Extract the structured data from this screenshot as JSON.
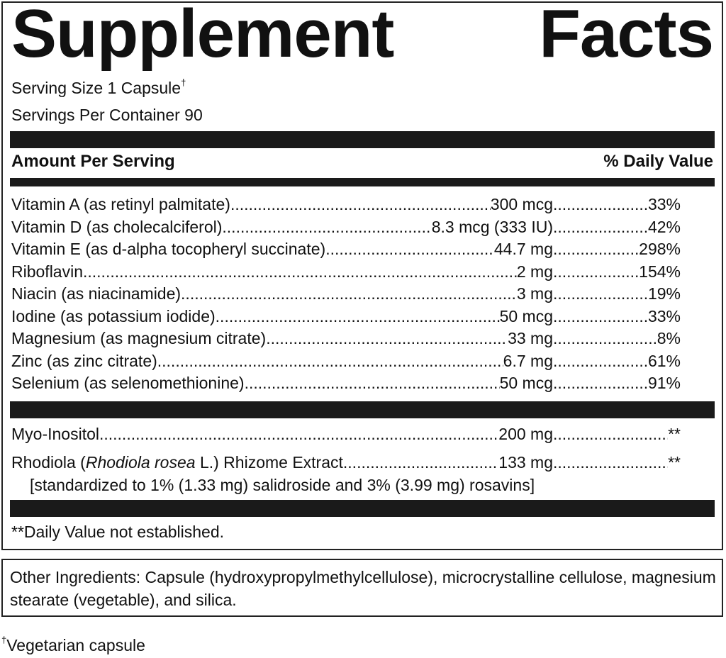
{
  "title": {
    "word1": "Supplement",
    "word2": "Facts"
  },
  "serving_size": "Serving Size 1 Capsule",
  "serving_size_mark": "†",
  "servings_per_container": "Servings Per Container 90",
  "header": {
    "amount": "Amount Per Serving",
    "dv": "% Daily Value"
  },
  "nutrients": [
    {
      "name": "Vitamin A (as retinyl palmitate)",
      "amount": "300 mcg",
      "dv": "33%"
    },
    {
      "name": "Vitamin D (as cholecalciferol) ",
      "amount": "8.3 mcg (333 IU)",
      "dv": "42%"
    },
    {
      "name": "Vitamin E (as d-alpha tocopheryl succinate)",
      "amount": "44.7 mg",
      "dv": "298%"
    },
    {
      "name": "Riboflavin",
      "amount": "2 mg",
      "dv": "154%"
    },
    {
      "name": "Niacin (as niacinamide)",
      "amount": "3 mg",
      "dv": "19%"
    },
    {
      "name": "Iodine (as potassium iodide)",
      "amount": "50 mcg",
      "dv": "33%"
    },
    {
      "name": "Magnesium (as magnesium citrate) ",
      "amount": "33 mg",
      "dv": "8%"
    },
    {
      "name": "Zinc (as zinc citrate)",
      "amount": "6.7 mg",
      "dv": "61%"
    },
    {
      "name": "Selenium (as selenomethionine)",
      "amount": "50 mcg",
      "dv": "91%"
    }
  ],
  "others": [
    {
      "name": "Myo-Inositol ",
      "amount": "200 mg",
      "dv": "**"
    },
    {
      "name_pre": "Rhodiola (",
      "name_italic": "Rhodiola rosea",
      "name_post": " L.) Rhizome Extract",
      "amount": "133 mg",
      "dv": "**",
      "note": "[standardized to 1% (1.33 mg) salidroside and 3% (3.99 mg) rosavins]"
    }
  ],
  "footnote": "**Daily Value not established.",
  "other_ingredients": "Other Ingredients: Capsule (hydroxypropylmethylcellulose), microcrystalline cellulose, magnesium stearate (vegetable), and silica.",
  "vegetarian_mark": "†",
  "vegetarian": "Vegetarian capsule"
}
